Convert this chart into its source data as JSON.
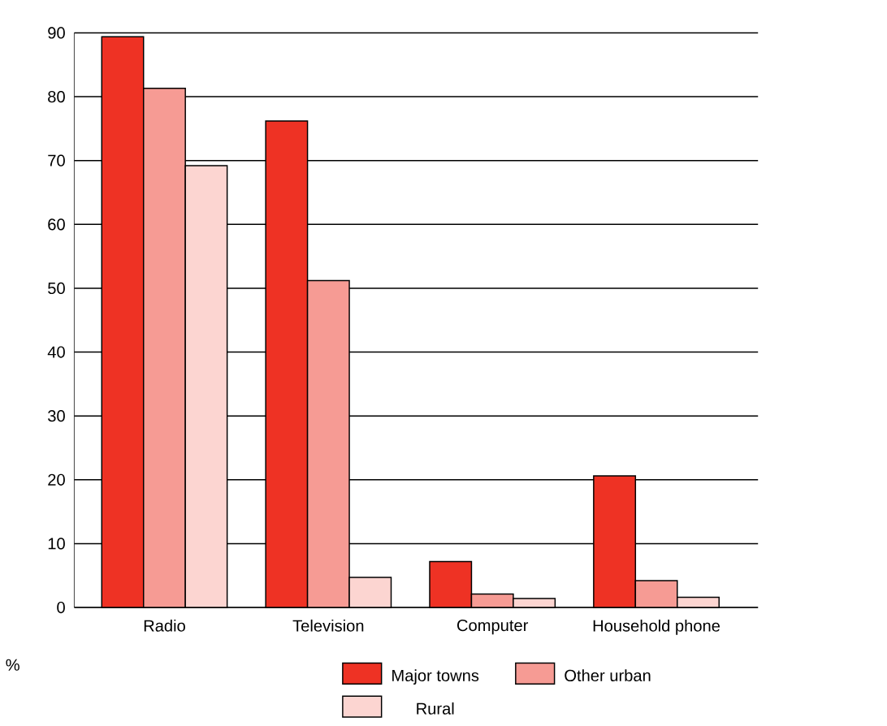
{
  "chart_data": {
    "type": "bar",
    "ylabel": "%",
    "categories": [
      "Radio",
      "Television",
      "Computer",
      "Household phone"
    ],
    "series": [
      {
        "name": "Major towns",
        "color": "#ee3224",
        "values": [
          89.4,
          76.2,
          7.2,
          20.6
        ]
      },
      {
        "name": "Other urban",
        "color": "#f69b94",
        "values": [
          81.3,
          51.2,
          2.1,
          4.2
        ]
      },
      {
        "name": "Rural",
        "color": "#fcd5d1",
        "values": [
          69.2,
          4.7,
          1.4,
          1.6
        ]
      }
    ],
    "ylim": [
      0,
      90
    ],
    "yticks": [
      0,
      10,
      20,
      30,
      40,
      50,
      60,
      70,
      80,
      90
    ],
    "grid": "y",
    "legend": "bottom"
  }
}
